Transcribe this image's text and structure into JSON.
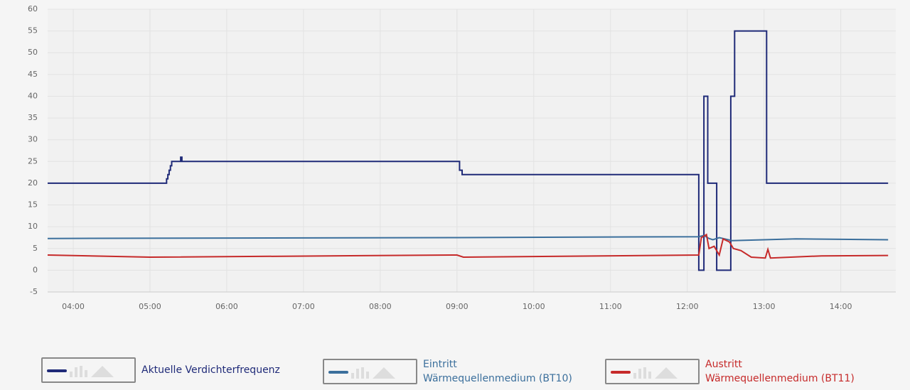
{
  "chart_data": {
    "type": "line",
    "xlim": [
      "03:40",
      "14:43"
    ],
    "xticks": [
      "04:00",
      "05:00",
      "06:00",
      "07:00",
      "08:00",
      "09:00",
      "10:00",
      "11:00",
      "12:00",
      "13:00",
      "14:00"
    ],
    "ylim": [
      -5,
      60
    ],
    "yticks": [
      -5,
      0,
      5,
      10,
      15,
      20,
      25,
      30,
      35,
      40,
      45,
      50,
      55,
      60
    ],
    "grid": true,
    "series": [
      {
        "name": "Aktuelle Verdichterfrequenz",
        "color": "#1f2a78",
        "x": [
          "03:40",
          "05:13",
          "05:13",
          "05:14",
          "05:14",
          "05:15",
          "05:15",
          "05:16",
          "05:16",
          "05:17",
          "05:17",
          "05:24",
          "05:24",
          "05:25",
          "05:25",
          "09:02",
          "09:02",
          "09:04",
          "09:04",
          "12:09",
          "12:09",
          "12:13",
          "12:13",
          "12:16",
          "12:16",
          "12:23",
          "12:23",
          "12:34",
          "12:34",
          "12:37",
          "12:37",
          "13:02",
          "13:02",
          "14:37"
        ],
        "values": [
          20,
          20,
          21,
          21,
          22,
          22,
          23,
          23,
          24,
          24,
          25,
          25,
          26,
          26,
          25,
          25,
          23,
          23,
          22,
          22,
          0,
          0,
          40,
          40,
          20,
          20,
          0,
          0,
          40,
          40,
          55,
          55,
          20,
          20
        ]
      },
      {
        "name": "Eintritt Wärmequellenmedium (BT10)",
        "color": "#3b6f9c",
        "x": [
          "03:40",
          "06:00",
          "09:00",
          "12:09",
          "12:13",
          "12:17",
          "12:20",
          "12:25",
          "12:35",
          "13:00",
          "13:25",
          "14:37"
        ],
        "values": [
          7.3,
          7.4,
          7.5,
          7.7,
          8,
          7.3,
          7,
          7.5,
          6.8,
          7,
          7.2,
          7
        ]
      },
      {
        "name": "Austritt Wärmequellenmedium (BT11)",
        "color": "#c62a2a",
        "x": [
          "03:40",
          "05:00",
          "09:00",
          "09:05",
          "12:09",
          "12:11",
          "12:15",
          "12:17",
          "12:21",
          "12:25",
          "12:28",
          "12:33",
          "12:36",
          "12:42",
          "12:50",
          "13:01",
          "13:03",
          "13:05",
          "13:45",
          "14:37"
        ],
        "values": [
          3.5,
          3,
          3.5,
          3,
          3.5,
          7.5,
          8.2,
          5,
          5.5,
          3.5,
          7.2,
          6.5,
          5,
          4.5,
          3,
          2.8,
          4.8,
          2.8,
          3.3,
          3.4
        ]
      }
    ]
  }
}
